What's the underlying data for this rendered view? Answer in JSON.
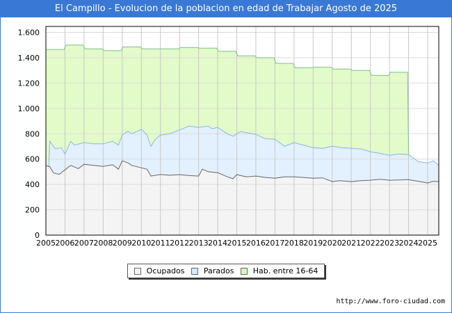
{
  "chart_data": {
    "type": "area",
    "title": "El Campillo - Evolucion de la poblacion en edad de Trabajar Agosto de 2025",
    "xlabel": "",
    "ylabel": "",
    "ylim": [
      0,
      1600
    ],
    "xlim": [
      2005,
      2025.6
    ],
    "grid": true,
    "legend_placement": "bottom-center",
    "y_ticks": [
      0,
      200,
      400,
      600,
      800,
      1000,
      1200,
      1400,
      1600
    ],
    "y_tick_labels": [
      "0",
      "200",
      "400",
      "600",
      "800",
      "1.000",
      "1.200",
      "1.400",
      "1.600"
    ],
    "x_tick_labels": [
      "2005",
      "2006",
      "2007",
      "2008",
      "2009",
      "2010",
      "2011",
      "2012",
      "2013",
      "2014",
      "2015",
      "2016",
      "2017",
      "2018",
      "2019",
      "2020",
      "2021",
      "2022",
      "2023",
      "2024",
      "2025"
    ],
    "series": [
      {
        "name": "Hab. entre 16-64",
        "color": "#e2fbc9",
        "line": "#7cc08a",
        "years": [
          2005,
          2006,
          2007,
          2008,
          2009,
          2010,
          2011,
          2012,
          2013,
          2014,
          2015,
          2016,
          2017,
          2018,
          2019,
          2020,
          2021,
          2022,
          2023
        ],
        "values": [
          1465,
          1500,
          1470,
          1455,
          1485,
          1470,
          1470,
          1480,
          1475,
          1450,
          1415,
          1400,
          1355,
          1320,
          1325,
          1310,
          1300,
          1260,
          1285
        ]
      },
      {
        "name": "Parados",
        "color": "#e3f0fd",
        "line": "#8db4e8",
        "x": [
          2005,
          2005.15,
          2005.2,
          2005.5,
          2005.8,
          2006,
          2006.3,
          2006.5,
          2007,
          2007.5,
          2008,
          2008.5,
          2008.8,
          2009,
          2009.3,
          2009.5,
          2010,
          2010.3,
          2010.5,
          2010.7,
          2011,
          2011.5,
          2012,
          2012.5,
          2013,
          2013.5,
          2013.7,
          2014,
          2014.5,
          2014.8,
          2015,
          2015.2,
          2016,
          2016.5,
          2017,
          2017.5,
          2018,
          2018.5,
          2019,
          2019.5,
          2020,
          2020.5,
          2021,
          2021.5,
          2022,
          2022.5,
          2023,
          2023.5,
          2024,
          2024.5,
          2025,
          2025.3,
          2025.6
        ],
        "values": [
          550,
          540,
          740,
          680,
          690,
          640,
          740,
          710,
          730,
          720,
          720,
          740,
          710,
          790,
          820,
          800,
          835,
          790,
          700,
          750,
          790,
          800,
          830,
          860,
          850,
          860,
          840,
          850,
          800,
          780,
          800,
          816,
          795,
          760,
          757,
          701,
          729,
          710,
          690,
          685,
          701,
          690,
          685,
          680,
          658,
          645,
          630,
          640,
          636,
          580,
          570,
          586,
          548
        ]
      },
      {
        "name": "Ocupados",
        "color": "#f4f4f4",
        "line": "#666666",
        "x": [
          2005,
          2005.2,
          2005.4,
          2005.7,
          2006,
          2006.3,
          2006.7,
          2007,
          2007.5,
          2008,
          2008.5,
          2008.8,
          2009,
          2009.3,
          2009.5,
          2010,
          2010.3,
          2010.5,
          2011,
          2011.5,
          2012,
          2012.5,
          2013,
          2013.2,
          2013.5,
          2014,
          2014.5,
          2014.8,
          2015,
          2015.5,
          2016,
          2016.5,
          2017,
          2017.5,
          2018,
          2018.5,
          2019,
          2019.5,
          2020,
          2020.4,
          2021,
          2021.5,
          2022,
          2022.5,
          2023,
          2023.5,
          2024,
          2024.3,
          2024.7,
          2025,
          2025.3,
          2025.6
        ],
        "values": [
          548,
          540,
          490,
          480,
          515,
          550,
          525,
          559,
          550,
          542,
          555,
          520,
          586,
          570,
          550,
          531,
          520,
          466,
          478,
          472,
          477,
          470,
          466,
          520,
          500,
          493,
          460,
          445,
          477,
          460,
          466,
          455,
          449,
          460,
          460,
          455,
          449,
          452,
          422,
          430,
          422,
          430,
          433,
          440,
          433,
          435,
          438,
          430,
          420,
          411,
          425,
          422
        ]
      }
    ]
  },
  "legend": {
    "items": [
      "Ocupados",
      "Parados",
      "Hab. entre 16-64"
    ]
  },
  "footer": {
    "url": "http://www.foro-ciudad.com"
  }
}
